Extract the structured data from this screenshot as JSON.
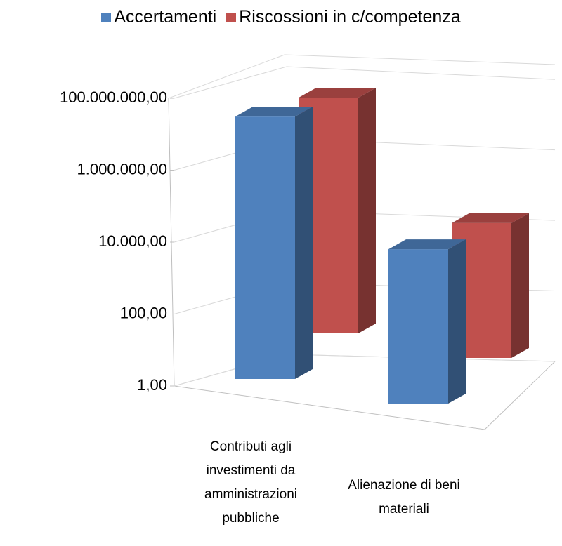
{
  "chart_data": {
    "type": "bar3d",
    "categories": [
      "Contributi agli investimenti da amministrazioni pubbliche",
      "Alienazione di beni materiali"
    ],
    "series": [
      {
        "name": "Accertamenti",
        "color": "#4f81bd",
        "values": [
          30000000,
          25000
        ]
      },
      {
        "name": "Riscossioni in c/competenza",
        "color": "#c0504d",
        "values": [
          20000000,
          15000
        ]
      }
    ],
    "log_scale": true,
    "ylim": [
      1,
      100000000
    ],
    "yticks": [
      {
        "value": 1,
        "label": "1,00"
      },
      {
        "value": 100,
        "label": "100,00"
      },
      {
        "value": 10000,
        "label": "10.000,00"
      },
      {
        "value": 1000000,
        "label": "1.000.000,00"
      },
      {
        "value": 100000000,
        "label": "100.000.000,00"
      }
    ],
    "grid": true,
    "legend": "top"
  }
}
